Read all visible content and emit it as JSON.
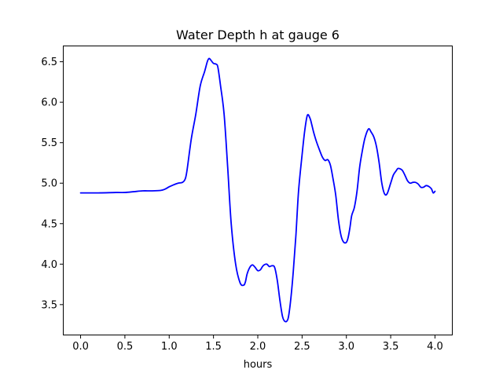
{
  "chart_data": {
    "type": "line",
    "title": "Water Depth h at gauge 6",
    "xlabel": "hours",
    "ylabel": "",
    "xlim": [
      -0.2,
      4.2
    ],
    "ylim": [
      3.12,
      6.7
    ],
    "xticks": [
      0.0,
      0.5,
      1.0,
      1.5,
      2.0,
      2.5,
      3.0,
      3.5,
      4.0
    ],
    "xtick_labels": [
      "0.0",
      "0.5",
      "1.0",
      "1.5",
      "2.0",
      "2.5",
      "3.0",
      "3.5",
      "4.0"
    ],
    "yticks": [
      3.5,
      4.0,
      4.5,
      5.0,
      5.5,
      6.0,
      6.5
    ],
    "ytick_labels": [
      "3.5",
      "4.0",
      "4.5",
      "5.0",
      "5.5",
      "6.0",
      "6.5"
    ],
    "grid": false,
    "series": [
      {
        "color": "#0000ff",
        "x": [
          0.0,
          0.2,
          0.4,
          0.5,
          0.6,
          0.7,
          0.8,
          0.9,
          0.95,
          1.0,
          1.05,
          1.1,
          1.15,
          1.18,
          1.2,
          1.25,
          1.3,
          1.35,
          1.4,
          1.43,
          1.45,
          1.47,
          1.5,
          1.53,
          1.55,
          1.58,
          1.62,
          1.66,
          1.7,
          1.75,
          1.8,
          1.84,
          1.86,
          1.88,
          1.91,
          1.94,
          1.97,
          2.0,
          2.03,
          2.06,
          2.1,
          2.13,
          2.16,
          2.19,
          2.22,
          2.25,
          2.28,
          2.31,
          2.34,
          2.36,
          2.38,
          2.4,
          2.43,
          2.46,
          2.5,
          2.53,
          2.56,
          2.59,
          2.61,
          2.63,
          2.66,
          2.7,
          2.73,
          2.76,
          2.79,
          2.82,
          2.85,
          2.88,
          2.91,
          2.94,
          2.97,
          3.0,
          3.02,
          3.04,
          3.06,
          3.09,
          3.12,
          3.15,
          3.18,
          3.21,
          3.25,
          3.28,
          3.31,
          3.34,
          3.37,
          3.4,
          3.43,
          3.46,
          3.5,
          3.53,
          3.56,
          3.58,
          3.6,
          3.63,
          3.66,
          3.69,
          3.72,
          3.75,
          3.78,
          3.81,
          3.84,
          3.87,
          3.9,
          3.93,
          3.96,
          3.98,
          4.0
        ],
        "y": [
          4.88,
          4.88,
          4.885,
          4.885,
          4.895,
          4.905,
          4.905,
          4.91,
          4.925,
          4.955,
          4.98,
          5.0,
          5.01,
          5.05,
          5.15,
          5.55,
          5.85,
          6.2,
          6.38,
          6.5,
          6.54,
          6.52,
          6.48,
          6.47,
          6.43,
          6.2,
          5.85,
          5.2,
          4.5,
          4.0,
          3.77,
          3.74,
          3.78,
          3.88,
          3.96,
          3.99,
          3.96,
          3.92,
          3.93,
          3.98,
          4.0,
          3.97,
          3.98,
          3.96,
          3.8,
          3.55,
          3.35,
          3.29,
          3.32,
          3.45,
          3.65,
          3.9,
          4.35,
          4.9,
          5.35,
          5.65,
          5.84,
          5.8,
          5.72,
          5.63,
          5.52,
          5.4,
          5.32,
          5.28,
          5.29,
          5.22,
          5.05,
          4.85,
          4.55,
          4.35,
          4.27,
          4.27,
          4.33,
          4.45,
          4.6,
          4.7,
          4.9,
          5.2,
          5.4,
          5.56,
          5.67,
          5.63,
          5.57,
          5.45,
          5.25,
          5.0,
          4.87,
          4.87,
          5.0,
          5.1,
          5.15,
          5.18,
          5.18,
          5.16,
          5.1,
          5.03,
          5.0,
          5.01,
          5.01,
          4.99,
          4.95,
          4.95,
          4.97,
          4.96,
          4.93,
          4.88,
          4.9
        ]
      }
    ]
  }
}
